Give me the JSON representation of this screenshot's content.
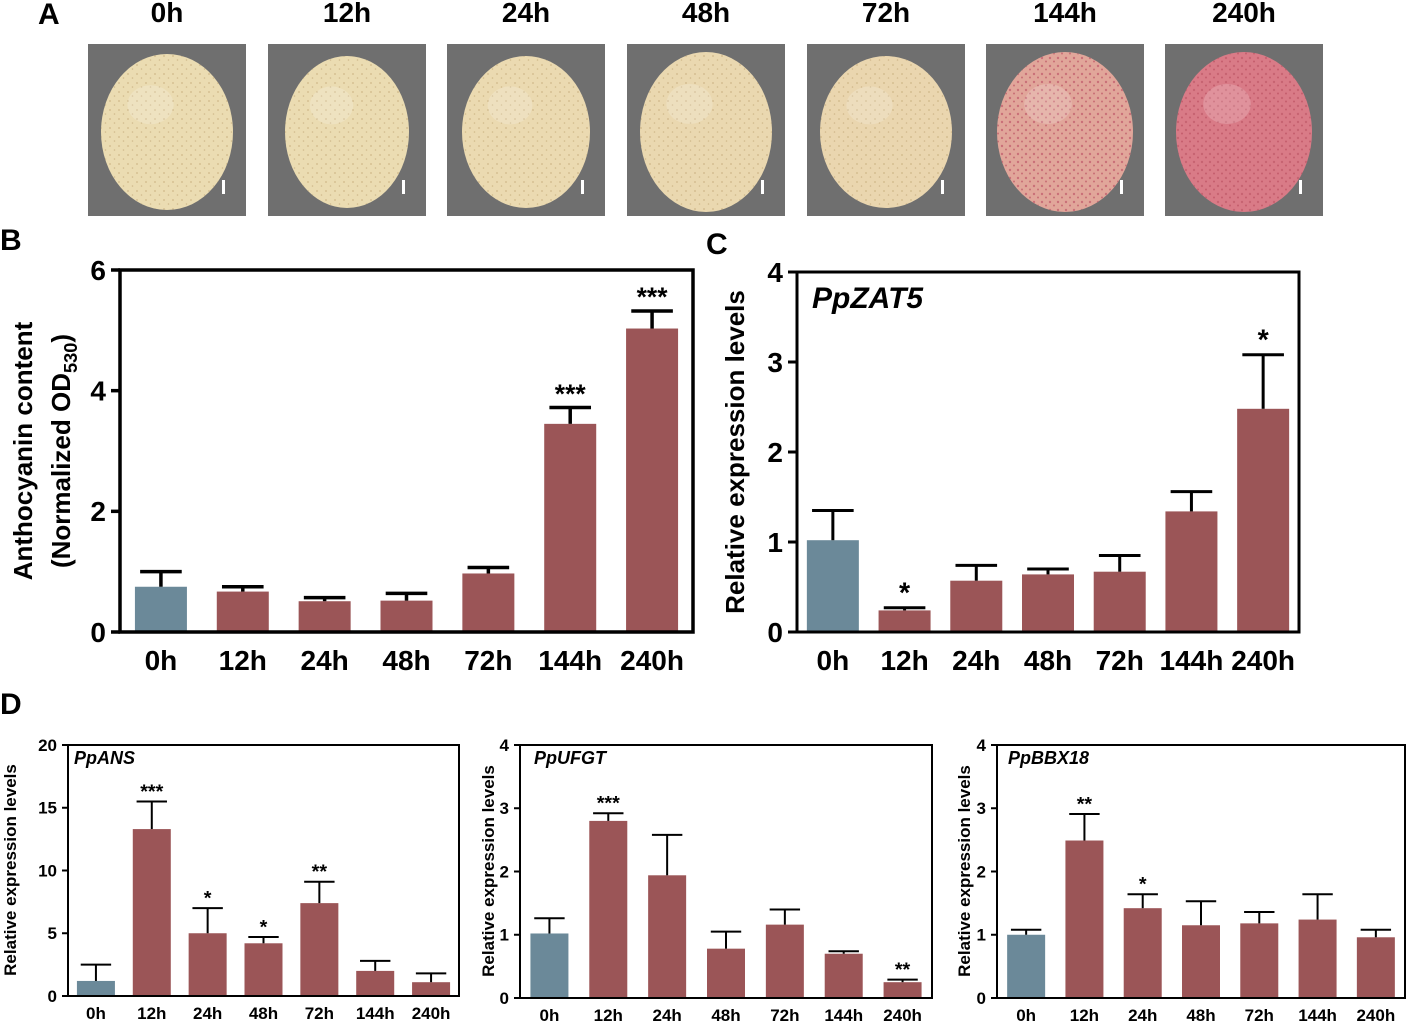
{
  "panel_a": {
    "label": "A",
    "timepoints": [
      "0h",
      "12h",
      "24h",
      "48h",
      "72h",
      "144h",
      "240h"
    ],
    "fruit_blush": [
      0.0,
      0.0,
      0.02,
      0.04,
      0.06,
      0.5,
      0.9
    ]
  },
  "colors": {
    "control": "#6b8999",
    "treated": "#9b5557",
    "axis": "#000000"
  },
  "chart_data": [
    {
      "id": "B",
      "type": "bar",
      "label": "B",
      "title": "",
      "ylabel_line1": "Anthocyanin content",
      "ylabel_line2": "(Normalized OD",
      "ylabel_sub": "530",
      "ylabel_close": ")",
      "categories": [
        "0h",
        "12h",
        "24h",
        "48h",
        "72h",
        "144h",
        "240h"
      ],
      "values": [
        0.75,
        0.67,
        0.51,
        0.52,
        0.97,
        3.45,
        5.03
      ],
      "errors": [
        0.25,
        0.08,
        0.06,
        0.12,
        0.1,
        0.27,
        0.29
      ],
      "sig": [
        "",
        "",
        "",
        "",
        "",
        "***",
        "***"
      ],
      "ylim": [
        0,
        6
      ],
      "yticks": [
        0,
        2,
        4,
        6
      ],
      "ytick_labels": [
        "0",
        "2",
        "4",
        "6"
      ]
    },
    {
      "id": "C",
      "type": "bar",
      "label": "C",
      "title": "PpZAT5",
      "ylabel_line1": "Relative expression levels",
      "categories": [
        "0h",
        "12h",
        "24h",
        "48h",
        "72h",
        "144h",
        "240h"
      ],
      "values": [
        1.02,
        0.24,
        0.57,
        0.64,
        0.67,
        1.34,
        2.48
      ],
      "errors": [
        0.33,
        0.03,
        0.17,
        0.06,
        0.18,
        0.22,
        0.6
      ],
      "sig": [
        "",
        "*",
        "",
        "",
        "",
        "",
        "*"
      ],
      "ylim": [
        0,
        4
      ],
      "yticks": [
        0,
        1,
        2,
        3,
        4
      ],
      "ytick_labels": [
        "0",
        "1",
        "2",
        "3",
        "4"
      ]
    },
    {
      "id": "D1",
      "type": "bar",
      "label": "D",
      "title": "PpANS",
      "ylabel_line1": "Relative expression levels",
      "categories": [
        "0h",
        "12h",
        "24h",
        "48h",
        "72h",
        "144h",
        "240h"
      ],
      "values": [
        1.2,
        13.3,
        5.0,
        4.2,
        7.4,
        2.0,
        1.1
      ],
      "errors": [
        1.3,
        2.2,
        2.0,
        0.5,
        1.7,
        0.8,
        0.7
      ],
      "sig": [
        "",
        "***",
        "*",
        "*",
        "**",
        "",
        ""
      ],
      "ylim": [
        0,
        20
      ],
      "yticks": [
        0,
        5,
        10,
        15,
        20
      ],
      "ytick_labels": [
        "0",
        "5",
        "10",
        "15",
        "20"
      ]
    },
    {
      "id": "D2",
      "type": "bar",
      "label": "",
      "title": "PpUFGT",
      "ylabel_line1": "Relative expression levels",
      "categories": [
        "0h",
        "12h",
        "24h",
        "48h",
        "72h",
        "144h",
        "240h"
      ],
      "values": [
        1.02,
        2.8,
        1.94,
        0.78,
        1.16,
        0.7,
        0.25
      ],
      "errors": [
        0.24,
        0.12,
        0.64,
        0.27,
        0.24,
        0.04,
        0.04
      ],
      "sig": [
        "",
        "***",
        "",
        "",
        "",
        "",
        "**"
      ],
      "ylim": [
        0,
        4
      ],
      "yticks": [
        0,
        1,
        2,
        3,
        4
      ],
      "ytick_labels": [
        "0",
        "1",
        "2",
        "3",
        "4"
      ]
    },
    {
      "id": "D3",
      "type": "bar",
      "label": "",
      "title": "PpBBX18",
      "ylabel_line1": "Relative expression levels",
      "categories": [
        "0h",
        "12h",
        "24h",
        "48h",
        "72h",
        "144h",
        "240h"
      ],
      "values": [
        1.0,
        2.49,
        1.42,
        1.15,
        1.18,
        1.24,
        0.96
      ],
      "errors": [
        0.08,
        0.42,
        0.22,
        0.38,
        0.18,
        0.4,
        0.12
      ],
      "sig": [
        "",
        "**",
        "*",
        "",
        "",
        "",
        ""
      ],
      "ylim": [
        0,
        4
      ],
      "yticks": [
        0,
        1,
        2,
        3,
        4
      ],
      "ytick_labels": [
        "0",
        "1",
        "2",
        "3",
        "4"
      ]
    }
  ]
}
